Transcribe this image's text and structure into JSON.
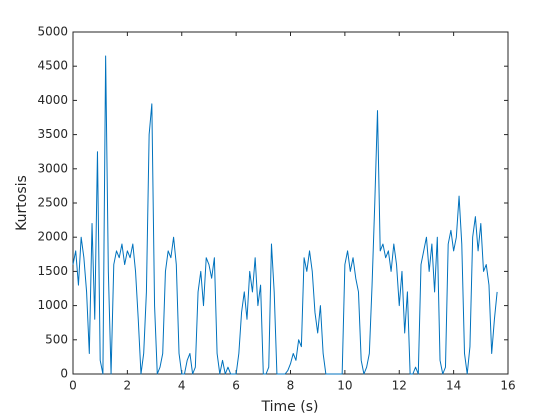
{
  "chart_data": {
    "type": "line",
    "x_label": "Time (s)",
    "y_label": "Kurtosis",
    "x": [
      0,
      0.1,
      0.2,
      0.3,
      0.4,
      0.5,
      0.6,
      0.7,
      0.8,
      0.9,
      1,
      1.1,
      1.2,
      1.3,
      1.4,
      1.5,
      1.6,
      1.7,
      1.8,
      1.9,
      2,
      2.1,
      2.2,
      2.3,
      2.4,
      2.5,
      2.6,
      2.7,
      2.8,
      2.9,
      3,
      3.1,
      3.2,
      3.3,
      3.4,
      3.5,
      3.6,
      3.7,
      3.8,
      3.9,
      4,
      4.1,
      4.2,
      4.3,
      4.4,
      4.5,
      4.6,
      4.7,
      4.8,
      4.9,
      5,
      5.1,
      5.2,
      5.3,
      5.4,
      5.5,
      5.6,
      5.7,
      5.8,
      5.9,
      6,
      6.1,
      6.2,
      6.3,
      6.4,
      6.5,
      6.6,
      6.7,
      6.8,
      6.9,
      7,
      7.1,
      7.2,
      7.3,
      7.4,
      7.5,
      7.6,
      7.7,
      7.8,
      7.9,
      8,
      8.1,
      8.2,
      8.3,
      8.4,
      8.5,
      8.6,
      8.7,
      8.8,
      8.9,
      9,
      9.1,
      9.2,
      9.3,
      9.4,
      9.5,
      9.6,
      9.7,
      9.8,
      9.9,
      10,
      10.1,
      10.2,
      10.3,
      10.4,
      10.5,
      10.6,
      10.7,
      10.8,
      10.9,
      11,
      11.1,
      11.2,
      11.3,
      11.4,
      11.5,
      11.6,
      11.7,
      11.8,
      11.9,
      12,
      12.1,
      12.2,
      12.3,
      12.4,
      12.5,
      12.6,
      12.7,
      12.8,
      12.9,
      13,
      13.1,
      13.2,
      13.3,
      13.4,
      13.5,
      13.6,
      13.7,
      13.8,
      13.9,
      14,
      14.1,
      14.2,
      14.3,
      14.4,
      14.5,
      14.6,
      14.7,
      14.8,
      14.9,
      15,
      15.1,
      15.2,
      15.3,
      15.4,
      15.5,
      15.6
    ],
    "series": [
      {
        "color": "#0072bd",
        "values": [
          1600,
          1800,
          1300,
          2000,
          1700,
          1200,
          300,
          2200,
          800,
          3250,
          200,
          0,
          4650,
          1500,
          0,
          1600,
          1800,
          1700,
          1900,
          1600,
          1800,
          1700,
          1900,
          1500,
          800,
          0,
          300,
          1200,
          3500,
          3950,
          1000,
          0,
          100,
          300,
          1500,
          1800,
          1700,
          2000,
          1600,
          300,
          0,
          0,
          200,
          300,
          0,
          100,
          1200,
          1500,
          1000,
          1700,
          1600,
          1400,
          1700,
          300,
          0,
          200,
          0,
          100,
          0,
          0,
          0,
          300,
          900,
          1200,
          800,
          1500,
          1200,
          1700,
          1000,
          1300,
          0,
          0,
          100,
          1900,
          1200,
          0,
          0,
          0,
          0,
          50,
          150,
          300,
          200,
          500,
          400,
          1700,
          1500,
          1800,
          1500,
          900,
          600,
          1000,
          300,
          0,
          0,
          0,
          0,
          0,
          0,
          0,
          1600,
          1800,
          1500,
          1700,
          1400,
          1200,
          200,
          0,
          100,
          300,
          1300,
          2500,
          3850,
          1800,
          1900,
          1700,
          1800,
          1500,
          1900,
          1600,
          1000,
          1500,
          600,
          1200,
          0,
          0,
          100,
          0,
          1600,
          1800,
          2000,
          1500,
          1900,
          1200,
          2000,
          200,
          0,
          100,
          1900,
          2100,
          1800,
          2000,
          2600,
          1900,
          300,
          0,
          400,
          2000,
          2300,
          1800,
          2200,
          1500,
          1600,
          1300,
          300,
          800,
          1200
        ]
      }
    ],
    "xlim": [
      0,
      16
    ],
    "ylim": [
      0,
      5000
    ],
    "xticks": [
      0,
      2,
      4,
      6,
      8,
      10,
      12,
      14,
      16
    ],
    "yticks": [
      0,
      500,
      1000,
      1500,
      2000,
      2500,
      3000,
      3500,
      4000,
      4500,
      5000
    ]
  }
}
